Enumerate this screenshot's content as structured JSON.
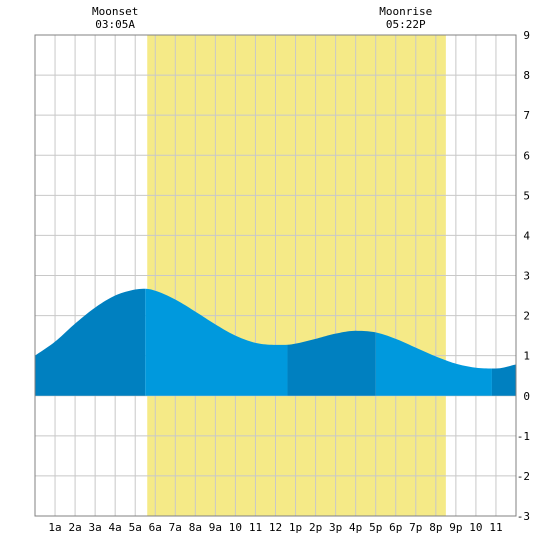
{
  "chart_data": {
    "type": "area",
    "title": "",
    "xlabel": "",
    "ylabel": "",
    "x_tick_labels": [
      "1a",
      "2a",
      "3a",
      "4a",
      "5a",
      "6a",
      "7a",
      "8a",
      "9a",
      "10",
      "11",
      "12",
      "1p",
      "2p",
      "3p",
      "4p",
      "5p",
      "6p",
      "7p",
      "8p",
      "9p",
      "10",
      "11"
    ],
    "y_tick_labels": [
      "9",
      "8",
      "7",
      "6",
      "5",
      "4",
      "3",
      "2",
      "1",
      "0",
      "-1",
      "-2",
      "-3"
    ],
    "ylim": [
      -3,
      9
    ],
    "xlim_hours": [
      0,
      24
    ],
    "grid": true,
    "daylight_hours": [
      5.6,
      20.5
    ],
    "series": [
      {
        "x_hours": [
          0,
          1,
          2,
          3,
          4,
          5,
          5.5,
          6,
          7,
          8,
          9,
          10,
          11,
          12,
          12.5,
          13,
          14,
          15,
          16,
          17,
          18,
          19,
          20,
          21,
          22,
          22.8,
          23,
          24
        ],
        "values": [
          1.0,
          1.35,
          1.8,
          2.2,
          2.5,
          2.65,
          2.67,
          2.62,
          2.4,
          2.1,
          1.78,
          1.5,
          1.32,
          1.27,
          1.27,
          1.3,
          1.42,
          1.55,
          1.62,
          1.58,
          1.42,
          1.2,
          0.98,
          0.8,
          0.7,
          0.68,
          0.68,
          0.78
        ]
      }
    ],
    "bands": [
      {
        "from": 0,
        "to": 5.5,
        "shade": "dark"
      },
      {
        "from": 5.5,
        "to": 12.6,
        "shade": "light"
      },
      {
        "from": 12.6,
        "to": 17.0,
        "shade": "dark"
      },
      {
        "from": 17.0,
        "to": 22.8,
        "shade": "light"
      },
      {
        "from": 22.8,
        "to": 24,
        "shade": "dark"
      }
    ],
    "annotations": [
      {
        "label": "Moonset",
        "time": "03:05A",
        "hour": 4.0
      },
      {
        "label": "Moonrise",
        "time": "05:22P",
        "hour": 18.5
      }
    ],
    "colors": {
      "daylight": "#f5ea87",
      "grid": "#c8c8c8",
      "frame": "#808080",
      "water_light": "#0099dd",
      "water_dark": "#0080c0"
    }
  }
}
